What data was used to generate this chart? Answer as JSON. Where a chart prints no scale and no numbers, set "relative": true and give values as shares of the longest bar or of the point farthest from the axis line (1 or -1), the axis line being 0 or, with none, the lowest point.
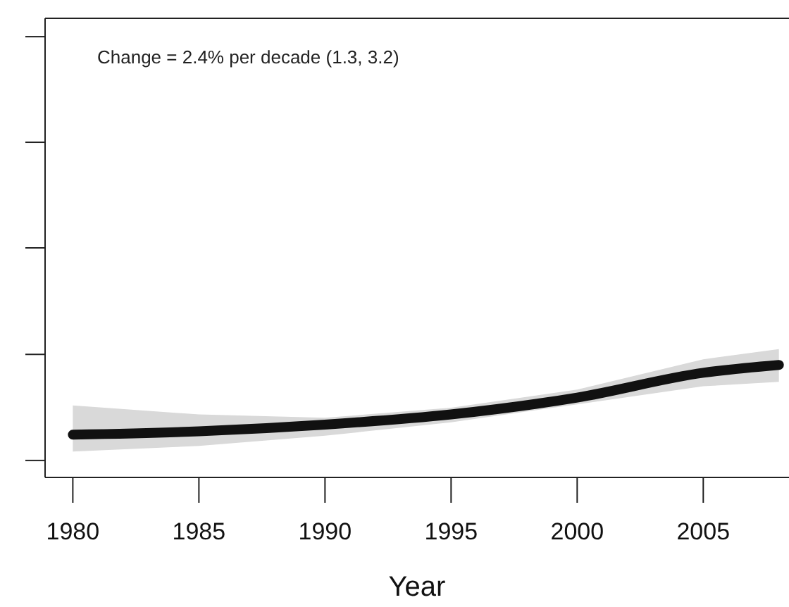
{
  "chart_data": {
    "type": "line",
    "relative": true,
    "xlabel": "Year",
    "annotations": [
      "Change = 2.4% per decade (1.3, 3.2)"
    ],
    "x": [
      1980,
      1985,
      1990,
      1995,
      2000,
      2005,
      2008
    ],
    "xlim": [
      1978.9,
      2008.4
    ],
    "xticks": [
      1980,
      1985,
      1990,
      1995,
      2000,
      2005
    ],
    "series": [
      {
        "color": "#111111",
        "values": [
          0.38,
          0.41,
          0.47,
          0.56,
          0.71,
          0.93,
          1.0
        ],
        "lower": [
          0.23,
          0.28,
          0.37,
          0.49,
          0.65,
          0.81,
          0.85
        ],
        "upper": [
          0.64,
          0.56,
          0.53,
          0.62,
          0.78,
          1.05,
          1.14
        ]
      }
    ],
    "marker": "none",
    "line_style": "solid"
  }
}
